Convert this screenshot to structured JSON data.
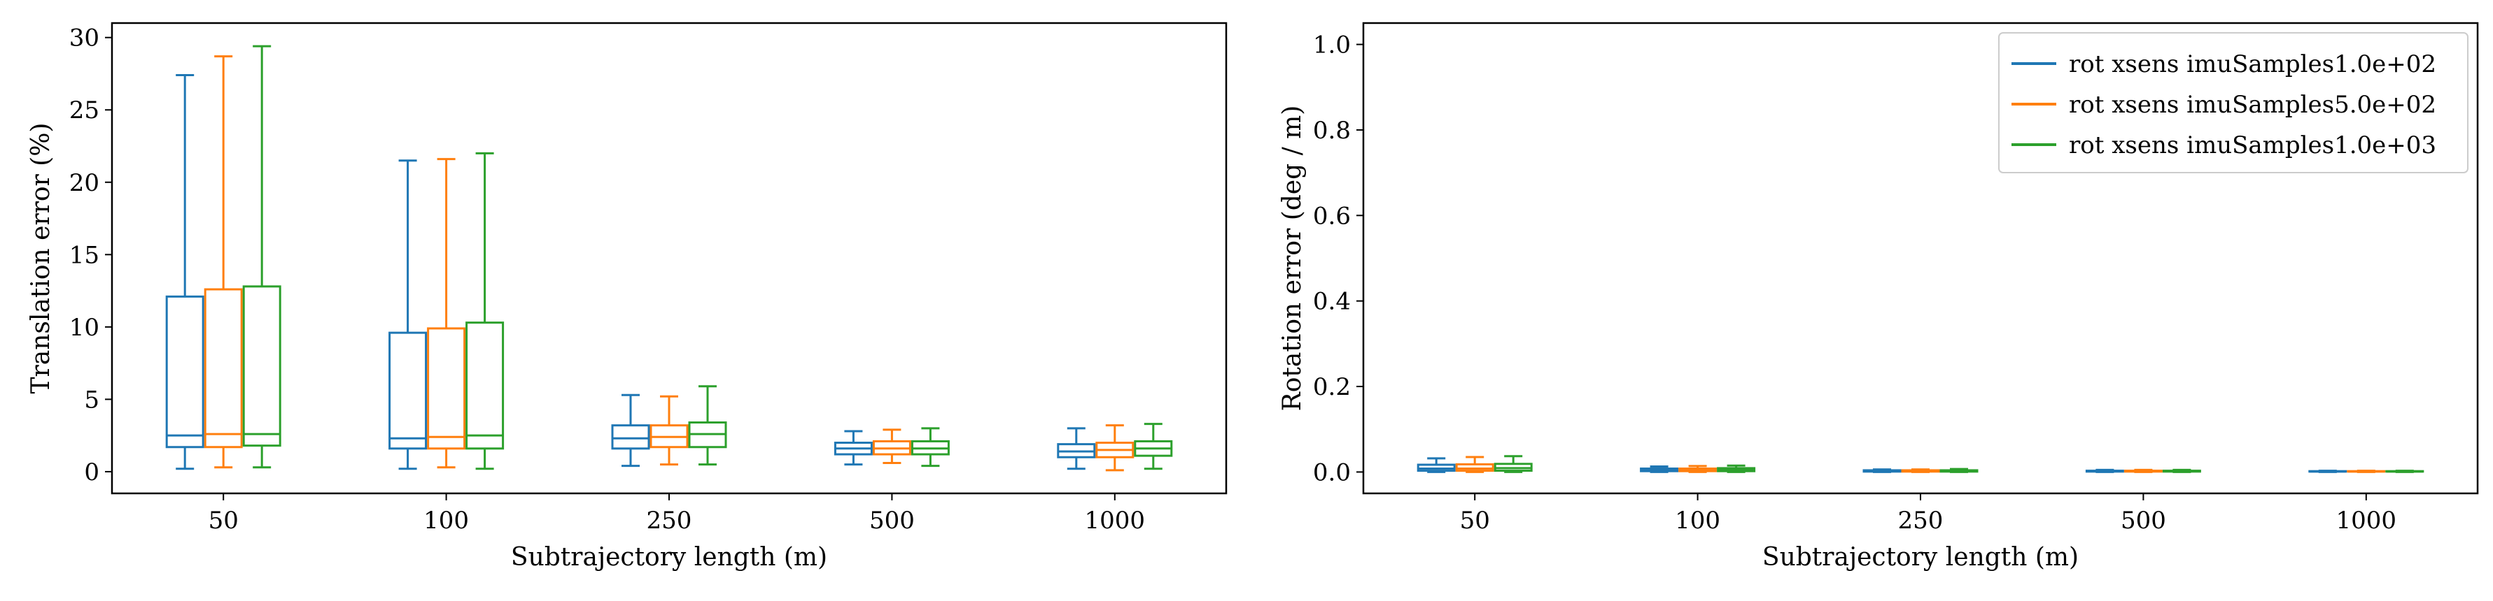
{
  "chart_data": [
    {
      "type": "box",
      "xlabel": "Subtrajectory length (m)",
      "ylabel": "Translation error (%)",
      "categories": [
        "50",
        "100",
        "250",
        "500",
        "1000"
      ],
      "ylim": [
        -1.5,
        31
      ],
      "yticks": [
        0,
        5,
        10,
        15,
        20,
        25,
        30
      ],
      "series": [
        {
          "name": "rot xsens imuSamples1.0e+02",
          "color": "#1f77b4",
          "boxes": [
            {
              "min": 0.2,
              "q1": 1.7,
              "median": 2.5,
              "q3": 12.1,
              "max": 27.4
            },
            {
              "min": 0.2,
              "q1": 1.6,
              "median": 2.3,
              "q3": 9.6,
              "max": 21.5
            },
            {
              "min": 0.4,
              "q1": 1.6,
              "median": 2.3,
              "q3": 3.2,
              "max": 5.3
            },
            {
              "min": 0.5,
              "q1": 1.2,
              "median": 1.6,
              "q3": 2.0,
              "max": 2.8
            },
            {
              "min": 0.2,
              "q1": 1.0,
              "median": 1.4,
              "q3": 1.9,
              "max": 3.0
            }
          ]
        },
        {
          "name": "rot xsens imuSamples5.0e+02",
          "color": "#ff7f0e",
          "boxes": [
            {
              "min": 0.3,
              "q1": 1.7,
              "median": 2.6,
              "q3": 12.6,
              "max": 28.7
            },
            {
              "min": 0.3,
              "q1": 1.6,
              "median": 2.4,
              "q3": 9.9,
              "max": 21.6
            },
            {
              "min": 0.5,
              "q1": 1.7,
              "median": 2.4,
              "q3": 3.2,
              "max": 5.2
            },
            {
              "min": 0.6,
              "q1": 1.2,
              "median": 1.6,
              "q3": 2.1,
              "max": 2.9
            },
            {
              "min": 0.1,
              "q1": 1.0,
              "median": 1.5,
              "q3": 2.0,
              "max": 3.2
            }
          ]
        },
        {
          "name": "rot xsens imuSamples1.0e+03",
          "color": "#2ca02c",
          "boxes": [
            {
              "min": 0.3,
              "q1": 1.8,
              "median": 2.6,
              "q3": 12.8,
              "max": 29.4
            },
            {
              "min": 0.2,
              "q1": 1.6,
              "median": 2.5,
              "q3": 10.3,
              "max": 22.0
            },
            {
              "min": 0.5,
              "q1": 1.7,
              "median": 2.6,
              "q3": 3.4,
              "max": 5.9
            },
            {
              "min": 0.4,
              "q1": 1.2,
              "median": 1.6,
              "q3": 2.1,
              "max": 3.0
            },
            {
              "min": 0.2,
              "q1": 1.1,
              "median": 1.6,
              "q3": 2.1,
              "max": 3.3
            }
          ]
        }
      ]
    },
    {
      "type": "box",
      "xlabel": "Subtrajectory length (m)",
      "ylabel": "Rotation error (deg / m)",
      "categories": [
        "50",
        "100",
        "250",
        "500",
        "1000"
      ],
      "ylim": [
        -0.05,
        1.05
      ],
      "yticks": [
        "0.0",
        "0.2",
        "0.4",
        "0.6",
        "0.8",
        "1.0"
      ],
      "legend": "top-right",
      "series": [
        {
          "name": "rot xsens imuSamples1.0e+02",
          "color": "#1f77b4",
          "boxes": [
            {
              "min": 0.0,
              "q1": 0.003,
              "median": 0.008,
              "q3": 0.017,
              "max": 0.032
            },
            {
              "min": 0.0,
              "q1": 0.002,
              "median": 0.004,
              "q3": 0.008,
              "max": 0.013
            },
            {
              "min": 0.0,
              "q1": 0.001,
              "median": 0.002,
              "q3": 0.004,
              "max": 0.006
            },
            {
              "min": 0.0,
              "q1": 0.001,
              "median": 0.002,
              "q3": 0.003,
              "max": 0.005
            },
            {
              "min": 0.0,
              "q1": 0.001,
              "median": 0.001,
              "q3": 0.002,
              "max": 0.003
            }
          ]
        },
        {
          "name": "rot xsens imuSamples5.0e+02",
          "color": "#ff7f0e",
          "boxes": [
            {
              "min": 0.0,
              "q1": 0.003,
              "median": 0.008,
              "q3": 0.018,
              "max": 0.035
            },
            {
              "min": 0.0,
              "q1": 0.002,
              "median": 0.004,
              "q3": 0.008,
              "max": 0.014
            },
            {
              "min": 0.0,
              "q1": 0.001,
              "median": 0.002,
              "q3": 0.004,
              "max": 0.006
            },
            {
              "min": 0.0,
              "q1": 0.001,
              "median": 0.002,
              "q3": 0.003,
              "max": 0.005
            },
            {
              "min": 0.0,
              "q1": 0.001,
              "median": 0.001,
              "q3": 0.002,
              "max": 0.003
            }
          ]
        },
        {
          "name": "rot xsens imuSamples1.0e+03",
          "color": "#2ca02c",
          "boxes": [
            {
              "min": 0.0,
              "q1": 0.003,
              "median": 0.009,
              "q3": 0.019,
              "max": 0.037
            },
            {
              "min": 0.0,
              "q1": 0.002,
              "median": 0.005,
              "q3": 0.009,
              "max": 0.015
            },
            {
              "min": 0.0,
              "q1": 0.001,
              "median": 0.002,
              "q3": 0.004,
              "max": 0.007
            },
            {
              "min": 0.0,
              "q1": 0.001,
              "median": 0.002,
              "q3": 0.003,
              "max": 0.005
            },
            {
              "min": 0.0,
              "q1": 0.001,
              "median": 0.001,
              "q3": 0.002,
              "max": 0.003
            }
          ]
        }
      ]
    }
  ]
}
